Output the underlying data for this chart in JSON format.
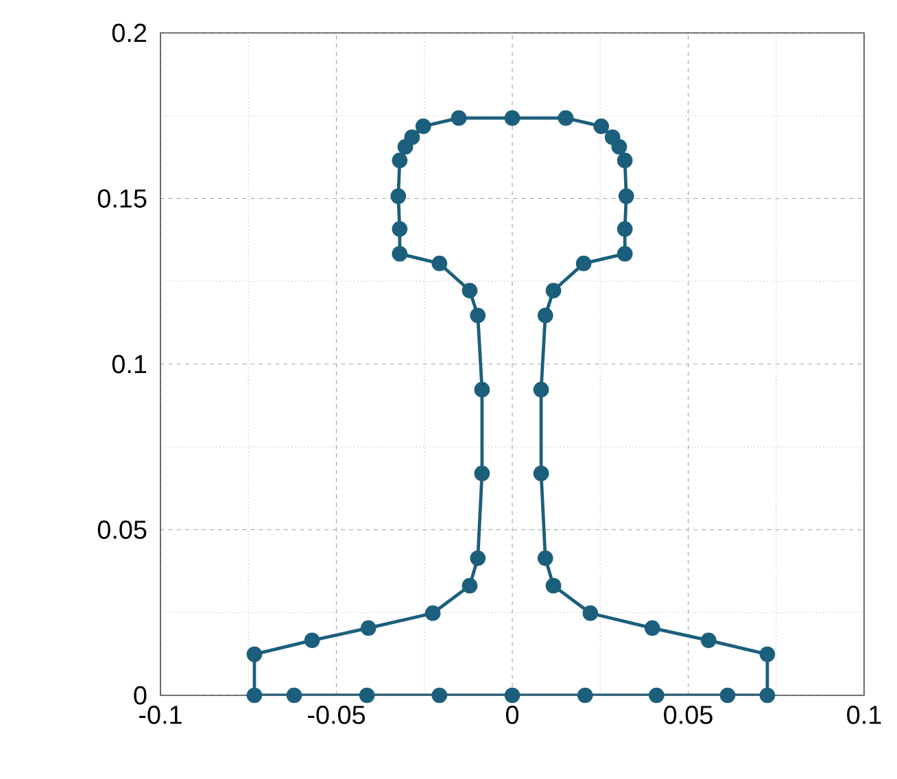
{
  "chart_data": {
    "type": "line",
    "xlim": [
      -0.1,
      0.1
    ],
    "ylim": [
      0,
      0.2
    ],
    "xticks": [
      -0.1,
      -0.05,
      0,
      0.05,
      0.1
    ],
    "yticks": [
      0,
      0.05,
      0.1,
      0.15,
      0.2
    ],
    "grid": true,
    "marker": "circle",
    "line_style": "solid",
    "series": [
      {
        "color": "#1c5f7c",
        "x": [
          -0.0733,
          -0.062,
          -0.0413,
          -0.0207,
          0,
          0.0207,
          0.041,
          0.0612,
          0.0725,
          0.0725,
          0.0558,
          0.0398,
          0.0222,
          0.0117,
          0.0094,
          0.0082,
          0.0082,
          0.0094,
          0.0117,
          0.0203,
          0.032,
          0.032,
          0.0324,
          0.032,
          0.0304,
          0.0285,
          0.0253,
          0.0152,
          0,
          -0.0152,
          -0.0253,
          -0.0285,
          -0.0304,
          -0.032,
          -0.0324,
          -0.032,
          -0.032,
          -0.0207,
          -0.0121,
          -0.0098,
          -0.0086,
          -0.0086,
          -0.0098,
          -0.0121,
          -0.0226,
          -0.0409,
          -0.0569,
          -0.0733
        ],
        "values": [
          0,
          0,
          0,
          0,
          0,
          0,
          0,
          0,
          0,
          0.0124,
          0.0166,
          0.0203,
          0.0248,
          0.0331,
          0.0414,
          0.067,
          0.0923,
          0.1147,
          0.1222,
          0.1304,
          0.1333,
          0.1408,
          0.1507,
          0.1615,
          0.1656,
          0.1685,
          0.1718,
          0.1743,
          0.1743,
          0.1743,
          0.1718,
          0.1685,
          0.1656,
          0.1615,
          0.1507,
          0.1408,
          0.1333,
          0.1304,
          0.1222,
          0.1147,
          0.0923,
          0.067,
          0.0414,
          0.0331,
          0.0248,
          0.0203,
          0.0166,
          0.0124
        ]
      },
      {
        "color": "#1c5f7c",
        "marker": "none",
        "x": [
          -0.0733,
          -0.0733
        ],
        "values": [
          0,
          0.0124
        ]
      }
    ]
  }
}
